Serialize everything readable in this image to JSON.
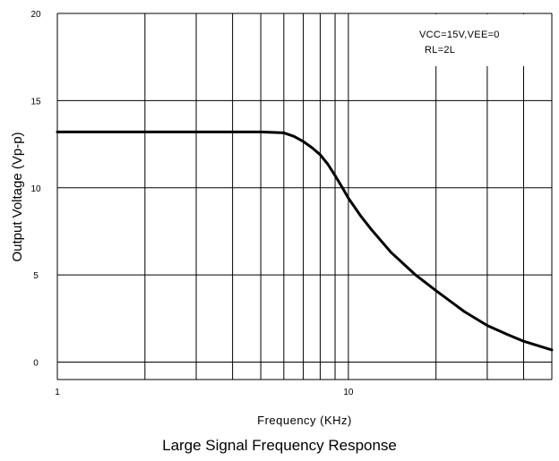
{
  "chart_data": {
    "type": "line",
    "title": "",
    "caption": "Large Signal Frequency Response",
    "xlabel": "Frequency (KHz)",
    "ylabel": "Output Voltage (Vp-p)",
    "xscale": "log",
    "xlim": [
      1,
      50
    ],
    "ylim": [
      -1,
      20
    ],
    "x_tick_labels": [
      "1",
      "10"
    ],
    "x_ticks": [
      1,
      10
    ],
    "y_tick_labels": [
      "0",
      "5",
      "10",
      "15",
      "20"
    ],
    "y_ticks": [
      0,
      5,
      10,
      15,
      20
    ],
    "grid": true,
    "annotations": [
      "VCC=15V,VEE=0",
      "RL=2L"
    ],
    "series": [
      {
        "name": "",
        "color": "#000000",
        "x": [
          1,
          2,
          3,
          4,
          5,
          6,
          6.5,
          7,
          7.5,
          8,
          8.5,
          9,
          9.5,
          10,
          11,
          12,
          14,
          17,
          20,
          25,
          30,
          35,
          40,
          50
        ],
        "y": [
          13.2,
          13.2,
          13.2,
          13.2,
          13.2,
          13.15,
          12.95,
          12.65,
          12.3,
          11.9,
          11.35,
          10.7,
          10.05,
          9.4,
          8.4,
          7.6,
          6.3,
          5.0,
          4.1,
          2.9,
          2.1,
          1.6,
          1.2,
          0.7
        ]
      }
    ]
  }
}
